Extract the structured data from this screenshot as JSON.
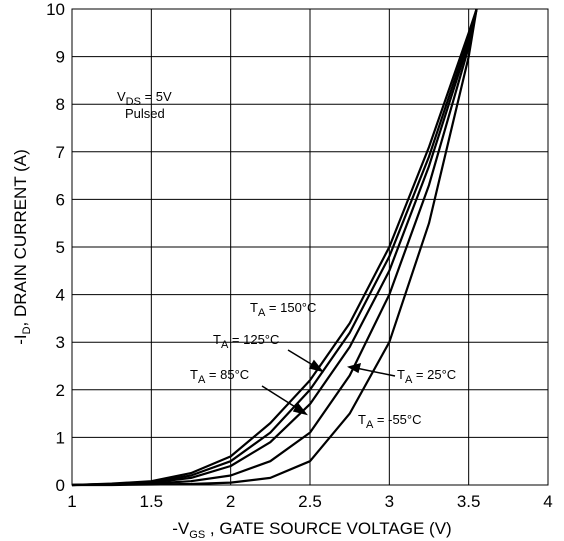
{
  "chart_data": {
    "type": "line",
    "x_label": {
      "main": "-V",
      "sub": "GS",
      "rest": " , GATE SOURCE VOLTAGE (V)"
    },
    "y_label": {
      "main": "-I",
      "sub": "D",
      "rest": ", DRAIN CURRENT (A)"
    },
    "x": [
      1,
      1.25,
      1.5,
      1.75,
      2,
      2.25,
      2.5,
      2.75,
      3,
      3.25,
      3.5,
      3.55
    ],
    "series": [
      {
        "name": {
          "main": "T",
          "sub": "A",
          "rest": " = 150°C"
        },
        "color": "#000000",
        "values": [
          0,
          0.03,
          0.08,
          0.25,
          0.6,
          1.3,
          2.2,
          3.4,
          5.0,
          7.1,
          9.5,
          10
        ]
      },
      {
        "name": {
          "main": "T",
          "sub": "A",
          "rest": " = 125°C"
        },
        "color": "#000000",
        "values": [
          0,
          0.02,
          0.06,
          0.2,
          0.5,
          1.1,
          2.0,
          3.2,
          4.8,
          6.9,
          9.4,
          10
        ]
      },
      {
        "name": {
          "main": "T",
          "sub": "A",
          "rest": " = 85°C"
        },
        "color": "#000000",
        "values": [
          0,
          0.02,
          0.05,
          0.15,
          0.4,
          0.9,
          1.7,
          2.9,
          4.5,
          6.7,
          9.3,
          10
        ]
      },
      {
        "name": {
          "main": "T",
          "sub": "A",
          "rest": " = 25°C"
        },
        "color": "#000000",
        "values": [
          0,
          0.01,
          0.03,
          0.08,
          0.2,
          0.5,
          1.1,
          2.3,
          4.0,
          6.3,
          9.2,
          10
        ]
      },
      {
        "name": {
          "main": "T",
          "sub": "A",
          "rest": " = -55°C"
        },
        "color": "#000000",
        "values": [
          0,
          0,
          0.01,
          0.02,
          0.05,
          0.15,
          0.5,
          1.5,
          3.0,
          5.5,
          9.0,
          10
        ]
      }
    ],
    "annotation": {
      "line1": {
        "main": "V",
        "sub": "DS",
        "rest": " = 5V"
      },
      "line2": "Pulsed"
    },
    "xlim": [
      1,
      4
    ],
    "ylim": [
      0,
      10
    ],
    "xticks": [
      1,
      1.5,
      2,
      2.5,
      3,
      3.5,
      4
    ],
    "yticks": [
      0,
      1,
      2,
      3,
      4,
      5,
      6,
      7,
      8,
      9,
      10
    ],
    "grid": true
  }
}
